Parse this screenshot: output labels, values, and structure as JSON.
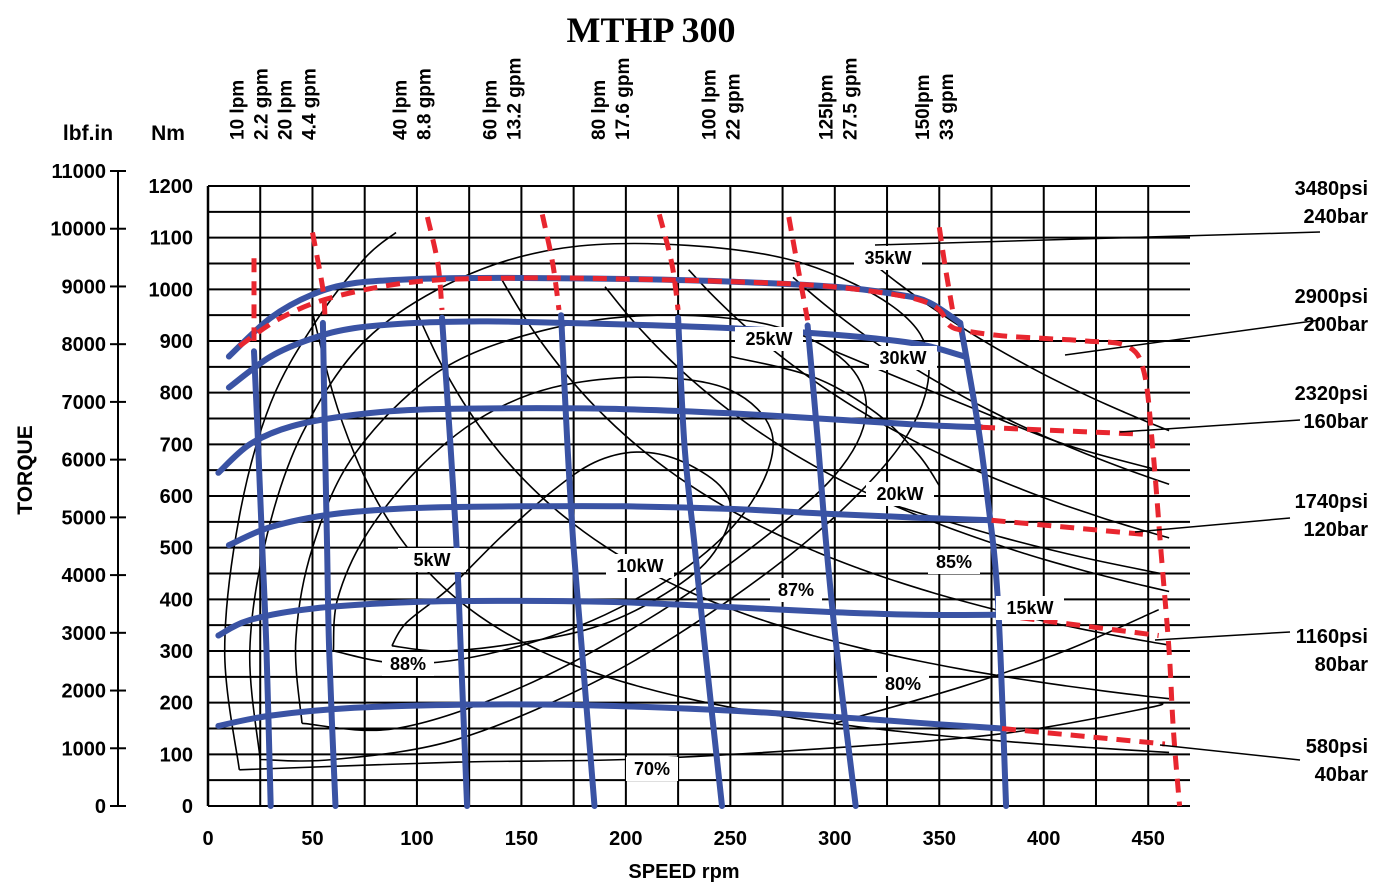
{
  "chart_data": {
    "type": "line",
    "title": "MTHP 300",
    "xlabel": "SPEED rpm",
    "ylabel": "TORQUE",
    "ylabel_units": [
      "lbf.in",
      "Nm"
    ],
    "xlim": [
      0,
      470
    ],
    "ylim": [
      0,
      1200
    ],
    "x_ticks": [
      "0",
      "50",
      "100",
      "150",
      "200",
      "250",
      "300",
      "350",
      "400",
      "450"
    ],
    "y_ticks_nm": [
      "0",
      "100",
      "200",
      "300",
      "400",
      "500",
      "600",
      "700",
      "800",
      "900",
      "1000",
      "1100",
      "1200"
    ],
    "y_ticks_lbfin": [
      "0",
      "1000",
      "2000",
      "3000",
      "4000",
      "5000",
      "6000",
      "7000",
      "8000",
      "9000",
      "10000",
      "11000"
    ],
    "grid": true,
    "pressure_labels": [
      {
        "psi": "3480psi",
        "bar": "240bar"
      },
      {
        "psi": "2900psi",
        "bar": "200bar"
      },
      {
        "psi": "2320psi",
        "bar": "160bar"
      },
      {
        "psi": "1740psi",
        "bar": "120bar"
      },
      {
        "psi": "1160psi",
        "bar": "80bar"
      },
      {
        "psi": "580psi",
        "bar": "40bar"
      }
    ],
    "flow_labels": [
      {
        "lpm": "10 lpm",
        "gpm": "2.2 gpm"
      },
      {
        "lpm": "20 lpm",
        "gpm": "4.4 gpm"
      },
      {
        "lpm": "40 lpm",
        "gpm": "8.8 gpm"
      },
      {
        "lpm": "60 lpm",
        "gpm": "13.2 gpm"
      },
      {
        "lpm": "80 lpm",
        "gpm": "17.6 gpm"
      },
      {
        "lpm": "100 lpm",
        "gpm": "22 gpm"
      },
      {
        "lpm": "125lpm",
        "gpm": "27.5 gpm"
      },
      {
        "lpm": "150lpm",
        "gpm": "33 gpm"
      }
    ],
    "power_labels": [
      "35kW",
      "30kW",
      "25kW",
      "20kW",
      "15kW",
      "10kW",
      "5kW"
    ],
    "efficiency_labels": [
      "88%",
      "87%",
      "85%",
      "80%",
      "70%"
    ],
    "pressure_curves": [
      {
        "name": "240bar",
        "points": [
          [
            10,
            870
          ],
          [
            30,
            945
          ],
          [
            50,
            990
          ],
          [
            70,
            1012
          ],
          [
            100,
            1020
          ],
          [
            130,
            1022
          ],
          [
            150,
            1022
          ],
          [
            200,
            1020
          ],
          [
            250,
            1015
          ],
          [
            300,
            1005
          ],
          [
            330,
            990
          ],
          [
            345,
            975
          ],
          [
            360,
            935
          ]
        ]
      },
      {
        "name": "200bar",
        "points": [
          [
            10,
            810
          ],
          [
            30,
            870
          ],
          [
            50,
            905
          ],
          [
            70,
            925
          ],
          [
            100,
            935
          ],
          [
            130,
            938
          ],
          [
            150,
            937
          ],
          [
            200,
            932
          ],
          [
            250,
            925
          ],
          [
            300,
            912
          ],
          [
            330,
            900
          ],
          [
            345,
            890
          ],
          [
            362,
            870
          ]
        ]
      },
      {
        "name": "160bar",
        "points": [
          [
            5,
            645
          ],
          [
            20,
            700
          ],
          [
            40,
            735
          ],
          [
            70,
            757
          ],
          [
            100,
            767
          ],
          [
            150,
            770
          ],
          [
            200,
            768
          ],
          [
            250,
            760
          ],
          [
            300,
            748
          ],
          [
            340,
            738
          ],
          [
            370,
            733
          ]
        ]
      },
      {
        "name": "120bar",
        "points": [
          [
            10,
            505
          ],
          [
            30,
            540
          ],
          [
            60,
            565
          ],
          [
            100,
            577
          ],
          [
            150,
            580
          ],
          [
            200,
            580
          ],
          [
            250,
            575
          ],
          [
            300,
            565
          ],
          [
            340,
            558
          ],
          [
            375,
            553
          ]
        ]
      },
      {
        "name": "80bar",
        "points": [
          [
            5,
            330
          ],
          [
            20,
            360
          ],
          [
            50,
            382
          ],
          [
            100,
            395
          ],
          [
            150,
            397
          ],
          [
            200,
            394
          ],
          [
            250,
            385
          ],
          [
            300,
            375
          ],
          [
            340,
            370
          ],
          [
            378,
            370
          ]
        ]
      },
      {
        "name": "40bar",
        "points": [
          [
            5,
            155
          ],
          [
            30,
            175
          ],
          [
            70,
            190
          ],
          [
            120,
            196
          ],
          [
            170,
            196
          ],
          [
            220,
            190
          ],
          [
            270,
            180
          ],
          [
            320,
            167
          ],
          [
            350,
            158
          ],
          [
            380,
            150
          ]
        ]
      }
    ],
    "flow_curves": [
      {
        "name": "10 lpm",
        "points": [
          [
            22,
            880
          ],
          [
            24,
            700
          ],
          [
            26,
            500
          ],
          [
            28,
            300
          ],
          [
            30,
            0
          ]
        ]
      },
      {
        "name": "20 lpm",
        "points": [
          [
            55,
            935
          ],
          [
            56,
            700
          ],
          [
            57,
            500
          ],
          [
            58,
            300
          ],
          [
            61,
            0
          ]
        ]
      },
      {
        "name": "40 lpm",
        "points": [
          [
            112,
            945
          ],
          [
            116,
            700
          ],
          [
            119,
            500
          ],
          [
            121,
            300
          ],
          [
            124,
            0
          ]
        ]
      },
      {
        "name": "60 lpm",
        "points": [
          [
            169,
            950
          ],
          [
            172,
            700
          ],
          [
            175,
            500
          ],
          [
            179,
            300
          ],
          [
            185,
            0
          ]
        ]
      },
      {
        "name": "80 lpm",
        "points": [
          [
            225,
            945
          ],
          [
            228,
            700
          ],
          [
            233,
            500
          ],
          [
            238,
            300
          ],
          [
            246,
            0
          ]
        ]
      },
      {
        "name": "100 lpm",
        "points": [
          [
            287,
            930
          ],
          [
            292,
            700
          ],
          [
            296,
            500
          ],
          [
            301,
            300
          ],
          [
            310,
            0
          ]
        ]
      },
      {
        "name": "125lpm",
        "points": [
          [
            360,
            935
          ],
          [
            368,
            750
          ],
          [
            373,
            600
          ],
          [
            378,
            400
          ],
          [
            382,
            0
          ]
        ]
      }
    ],
    "max_limit_curve": {
      "points": [
        [
          15,
          890
        ],
        [
          35,
          945
        ],
        [
          60,
          985
        ],
        [
          100,
          1015
        ],
        [
          150,
          1022
        ],
        [
          200,
          1020
        ],
        [
          250,
          1015
        ],
        [
          290,
          1008
        ],
        [
          320,
          995
        ],
        [
          340,
          980
        ],
        [
          350,
          960
        ],
        [
          355,
          930
        ],
        [
          362,
          920
        ],
        [
          380,
          910
        ],
        [
          400,
          905
        ],
        [
          420,
          900
        ],
        [
          440,
          890
        ],
        [
          448,
          840
        ],
        [
          452,
          700
        ],
        [
          456,
          500
        ],
        [
          460,
          300
        ],
        [
          462,
          150
        ],
        [
          465,
          0
        ]
      ]
    },
    "max_flow_steps": [
      {
        "name": "10 lpm",
        "points": [
          [
            22,
            1060
          ],
          [
            22,
            900
          ]
        ]
      },
      {
        "name": "20 lpm",
        "points": [
          [
            50,
            1110
          ],
          [
            55,
            1000
          ],
          [
            56,
            940
          ]
        ]
      },
      {
        "name": "40 lpm",
        "points": [
          [
            105,
            1140
          ],
          [
            110,
            1050
          ],
          [
            112,
            960
          ]
        ]
      },
      {
        "name": "60 lpm",
        "points": [
          [
            160,
            1145
          ],
          [
            165,
            1050
          ],
          [
            168,
            960
          ]
        ]
      },
      {
        "name": "80 lpm",
        "points": [
          [
            216,
            1145
          ],
          [
            222,
            1050
          ],
          [
            225,
            960
          ]
        ]
      },
      {
        "name": "100 lpm",
        "points": [
          [
            278,
            1140
          ],
          [
            282,
            1050
          ],
          [
            287,
            940
          ]
        ]
      },
      {
        "name": "125lpm",
        "points": [
          [
            350,
            1120
          ],
          [
            353,
            1040
          ],
          [
            357,
            945
          ]
        ]
      }
    ]
  },
  "colors": {
    "grid": "#000000",
    "pressure_curves": "#3A53A4",
    "limit": "#E8262F",
    "iso_lines": "#000000"
  }
}
